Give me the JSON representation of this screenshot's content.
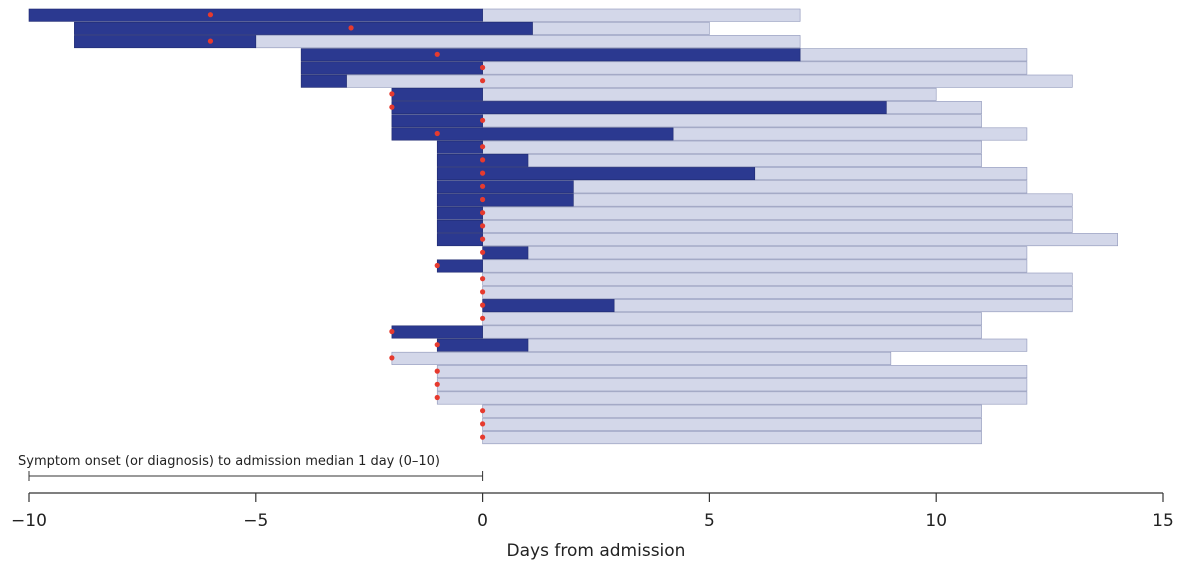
{
  "chart_data": {
    "type": "bar",
    "subtype": "horizontal-floating-timeline",
    "xlabel": "Days from admission",
    "xlim": [
      -10,
      15
    ],
    "xticks": [
      -10,
      -5,
      0,
      5,
      10,
      15
    ],
    "xtick_labels": [
      "−10",
      "−5",
      "0",
      "5",
      "10",
      "15"
    ],
    "annotation": {
      "text": "Symptom onset (or diagnosis) to admission median 1 day (0–10)",
      "from": -10,
      "to": 0
    },
    "colors": {
      "dark_segment": "#2B3990",
      "light_segment": "#D3D7E9",
      "dot": "#E63A2E",
      "axis": "#333333"
    },
    "rows": [
      {
        "start": -10,
        "dark_end": 0,
        "end": 7,
        "dot": -6
      },
      {
        "start": -9,
        "dark_end": 1.1,
        "end": 5,
        "dot": -2.9
      },
      {
        "start": -9,
        "dark_end": -5,
        "end": 7,
        "dot": -6
      },
      {
        "start": -4,
        "dark_end": 7,
        "end": 12,
        "dot": -1
      },
      {
        "start": -4,
        "dark_end": 0,
        "end": 12,
        "dot": 0
      },
      {
        "start": -4,
        "dark_end": -3,
        "end": 13,
        "dot": 0
      },
      {
        "start": -2,
        "dark_end": 0,
        "end": 10,
        "dot": -2
      },
      {
        "start": -2,
        "dark_end": 8.9,
        "end": 11,
        "dot": -2
      },
      {
        "start": -2,
        "dark_end": 0,
        "end": 11,
        "dot": 0
      },
      {
        "start": -2,
        "dark_end": 4.2,
        "end": 12,
        "dot": -1
      },
      {
        "start": -1,
        "dark_end": 0,
        "end": 11,
        "dot": 0
      },
      {
        "start": -1,
        "dark_end": 1,
        "end": 11,
        "dot": 0
      },
      {
        "start": -1,
        "dark_end": 6,
        "end": 12,
        "dot": 0
      },
      {
        "start": -1,
        "dark_end": 2,
        "end": 12,
        "dot": 0
      },
      {
        "start": -1,
        "dark_end": 2,
        "end": 13,
        "dot": 0
      },
      {
        "start": -1,
        "dark_end": 0,
        "end": 13,
        "dot": 0
      },
      {
        "start": -1,
        "dark_end": 0,
        "end": 13,
        "dot": 0
      },
      {
        "start": -1,
        "dark_end": 0,
        "end": 14,
        "dot": 0
      },
      {
        "start": 0,
        "dark_end": 1,
        "end": 12,
        "dot": 0
      },
      {
        "start": -1,
        "dark_end": 0,
        "end": 12,
        "dot": -1
      },
      {
        "start": 0,
        "dark_end": 0,
        "end": 13,
        "dot": 0
      },
      {
        "start": 0,
        "dark_end": 0,
        "end": 13,
        "dot": 0
      },
      {
        "start": 0,
        "dark_end": 2.9,
        "end": 13,
        "dot": 0
      },
      {
        "start": 0,
        "dark_end": 0,
        "end": 11,
        "dot": 0
      },
      {
        "start": -2,
        "dark_end": 0,
        "end": 11,
        "dot": -2
      },
      {
        "start": -1,
        "dark_end": 1,
        "end": 12,
        "dot": -1
      },
      {
        "start": -2,
        "dark_end": -2,
        "end": 9,
        "dot": -2
      },
      {
        "start": -1,
        "dark_end": -1,
        "end": 12,
        "dot": -1
      },
      {
        "start": -1,
        "dark_end": -1,
        "end": 12,
        "dot": -1
      },
      {
        "start": -1,
        "dark_end": -1,
        "end": 12,
        "dot": -1
      },
      {
        "start": 0,
        "dark_end": 0,
        "end": 11,
        "dot": 0
      },
      {
        "start": 0,
        "dark_end": 0,
        "end": 11,
        "dot": 0
      },
      {
        "start": 0,
        "dark_end": 0,
        "end": 11,
        "dot": 0
      }
    ]
  }
}
